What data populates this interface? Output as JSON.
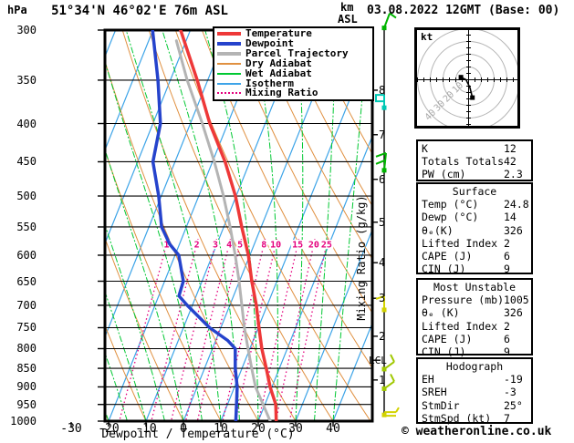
{
  "header": {
    "pressure_unit": "hPa",
    "title": "51°34'N 46°02'E 76m ASL",
    "altitude_unit": "km",
    "altitude_ref": "ASL",
    "datetime": "03.08.2022 12GMT (Base: 00)"
  },
  "legend": {
    "items": [
      {
        "label": "Temperature",
        "color": "#ee3838",
        "style": "thick"
      },
      {
        "label": "Dewpoint",
        "color": "#2543cc",
        "style": "thick"
      },
      {
        "label": "Parcel Trajectory",
        "color": "#b4b4b4",
        "style": "thick"
      },
      {
        "label": "Dry Adiabat",
        "color": "#e09040",
        "style": "thin"
      },
      {
        "label": "Wet Adiabat",
        "color": "#00c832",
        "style": "thin"
      },
      {
        "label": "Isotherm",
        "color": "#3da4e8",
        "style": "thin"
      },
      {
        "label": "Mixing Ratio",
        "color": "#e4007d",
        "style": "dotted"
      }
    ]
  },
  "axes": {
    "pressure_ticks_hpa": [
      300,
      350,
      400,
      450,
      500,
      550,
      600,
      650,
      700,
      750,
      800,
      850,
      900,
      950,
      1000
    ],
    "temp_ticks_c": [
      -30,
      -20,
      -10,
      0,
      10,
      20,
      30,
      40
    ],
    "temp_axis_label": "Dewpoint / Temperature (°C)",
    "mixing_axis_label": "Mixing Ratio (g/kg)"
  },
  "chart_data": {
    "type": "skewt_logp_sounding",
    "pressure_range_hpa": [
      300,
      1000
    ],
    "isotherm_step_c": 10,
    "dry_adiabat_step_c": 10,
    "wet_adiabat_step_c": 5,
    "mixing_ratio_lines_gkg": [
      1,
      2,
      3,
      4,
      5,
      8,
      10,
      15,
      20,
      25
    ],
    "km_asl_ticks": [
      {
        "km": "1",
        "hpa": 881
      },
      {
        "km": "2",
        "hpa": 770
      },
      {
        "km": "3",
        "hpa": 685
      },
      {
        "km": "4",
        "hpa": 614
      },
      {
        "km": "5",
        "hpa": 542
      },
      {
        "km": "6",
        "hpa": 475
      },
      {
        "km": "7",
        "hpa": 414
      },
      {
        "km": "8",
        "hpa": 361
      }
    ],
    "lcl": {
      "label": "LCL",
      "hpa": 829
    },
    "series": {
      "temperature_c": [
        [
          1000,
          24.8
        ],
        [
          950,
          22.9
        ],
        [
          900,
          19.5
        ],
        [
          850,
          16.5
        ],
        [
          800,
          13.2
        ],
        [
          750,
          10.2
        ],
        [
          700,
          7.1
        ],
        [
          650,
          3.3
        ],
        [
          600,
          -0.4
        ],
        [
          550,
          -5.2
        ],
        [
          500,
          -10.2
        ],
        [
          450,
          -16.6
        ],
        [
          400,
          -24.8
        ],
        [
          350,
          -32.8
        ],
        [
          300,
          -42.6
        ]
      ],
      "dewpoint_c": [
        [
          1000,
          14
        ],
        [
          950,
          12.4
        ],
        [
          900,
          10.7
        ],
        [
          850,
          8.2
        ],
        [
          800,
          6.1
        ],
        [
          780,
          3.2
        ],
        [
          750,
          -3
        ],
        [
          700,
          -11.4
        ],
        [
          680,
          -14.6
        ],
        [
          650,
          -15
        ],
        [
          600,
          -19
        ],
        [
          580,
          -22.6
        ],
        [
          550,
          -26.6
        ],
        [
          500,
          -30.7
        ],
        [
          450,
          -35.9
        ],
        [
          400,
          -38
        ],
        [
          350,
          -43.3
        ],
        [
          300,
          -50.1
        ]
      ],
      "parcel_c": [
        [
          1000,
          23.2
        ],
        [
          950,
          19.5
        ],
        [
          900,
          15.6
        ],
        [
          850,
          12.6
        ],
        [
          800,
          9.5
        ],
        [
          750,
          6.3
        ],
        [
          700,
          3.2
        ],
        [
          650,
          -0.1
        ],
        [
          600,
          -3.9
        ],
        [
          550,
          -8.3
        ],
        [
          500,
          -13.4
        ],
        [
          450,
          -19.5
        ],
        [
          400,
          -26.8
        ],
        [
          350,
          -35.5
        ],
        [
          310,
          -42.6
        ]
      ]
    }
  },
  "wind_barbs": [
    {
      "hpa": 298,
      "color": "#00b400",
      "kind": "half-ne"
    },
    {
      "hpa": 381,
      "color": "#00c8b4",
      "kind": "flag-w"
    },
    {
      "hpa": 462,
      "color": "#00b400",
      "kind": "barb-nw"
    },
    {
      "hpa": 710,
      "color": "#d2d200",
      "kind": "hook-nw"
    },
    {
      "hpa": 852,
      "color": "#a0c800",
      "kind": "barb-ne"
    },
    {
      "hpa": 905,
      "color": "#a0c800",
      "kind": "barb-ne"
    },
    {
      "hpa": 981,
      "color": "#d2d200",
      "kind": "calm-e"
    }
  ],
  "hodograph": {
    "unit_label": "kt",
    "rings_kt": [
      10,
      20,
      30,
      40
    ],
    "trace_uv_kt": [
      [
        -6,
        2
      ],
      [
        -4,
        1
      ],
      [
        -2,
        0
      ],
      [
        -1,
        -2
      ],
      [
        1,
        -6
      ],
      [
        2,
        -10
      ],
      [
        3,
        -14
      ]
    ],
    "markers_uv_kt": [
      [
        -6,
        2
      ],
      [
        3,
        -14
      ]
    ]
  },
  "side_panel": {
    "boxes": [
      {
        "header": null,
        "rows": [
          [
            "K",
            "12"
          ],
          [
            "Totals Totals",
            "42"
          ],
          [
            "PW (cm)",
            "2.3"
          ]
        ]
      },
      {
        "header": "Surface",
        "rows": [
          [
            "Temp (°C)",
            "24.8"
          ],
          [
            "Dewp (°C)",
            "14"
          ],
          [
            "θₑ(K)",
            "326"
          ],
          [
            "Lifted Index",
            "2"
          ],
          [
            "CAPE (J)",
            "6"
          ],
          [
            "CIN (J)",
            "9"
          ]
        ]
      },
      {
        "header": "Most Unstable",
        "rows": [
          [
            "Pressure (mb)",
            "1005"
          ],
          [
            "θₑ (K)",
            "326"
          ],
          [
            "Lifted Index",
            "2"
          ],
          [
            "CAPE (J)",
            "6"
          ],
          [
            "CIN (J)",
            "9"
          ]
        ]
      },
      {
        "header": "Hodograph",
        "rows": [
          [
            "EH",
            "-19"
          ],
          [
            "SREH",
            "-3"
          ],
          [
            "StmDir",
            "25°"
          ],
          [
            "StmSpd (kt)",
            "7"
          ]
        ]
      }
    ]
  },
  "footer": {
    "credit": "© weatheronline.co.uk"
  }
}
